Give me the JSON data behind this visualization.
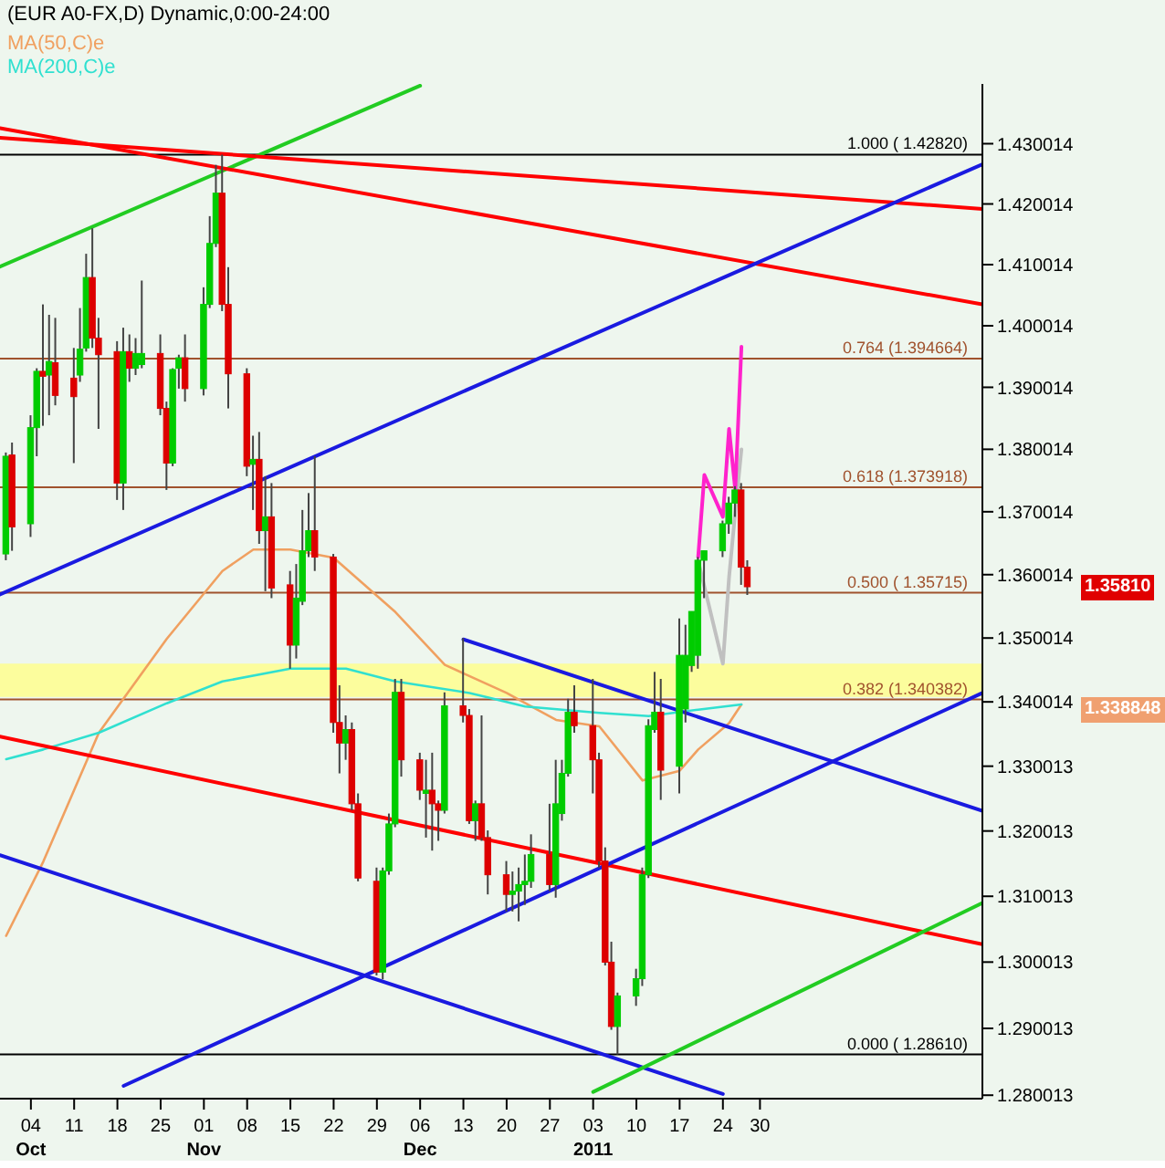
{
  "chart_data": {
    "type": "candlestick",
    "title": "(EUR A0-FX,D) Dynamic,0:00-24:00",
    "x": [
      "2010-09-30",
      "2010-10-01",
      "2010-10-04",
      "2010-10-05",
      "2010-10-06",
      "2010-10-07",
      "2010-10-08",
      "2010-10-11",
      "2010-10-12",
      "2010-10-13",
      "2010-10-14",
      "2010-10-15",
      "2010-10-18",
      "2010-10-19",
      "2010-10-20",
      "2010-10-21",
      "2010-10-22",
      "2010-10-25",
      "2010-10-26",
      "2010-10-27",
      "2010-10-28",
      "2010-10-29",
      "2010-11-01",
      "2010-11-02",
      "2010-11-03",
      "2010-11-04",
      "2010-11-05",
      "2010-11-08",
      "2010-11-09",
      "2010-11-10",
      "2010-11-11",
      "2010-11-12",
      "2010-11-15",
      "2010-11-16",
      "2010-11-17",
      "2010-11-18",
      "2010-11-19",
      "2010-11-22",
      "2010-11-23",
      "2010-11-24",
      "2010-11-25",
      "2010-11-26",
      "2010-11-29",
      "2010-11-30",
      "2010-12-01",
      "2010-12-02",
      "2010-12-03",
      "2010-12-06",
      "2010-12-07",
      "2010-12-08",
      "2010-12-09",
      "2010-12-10",
      "2010-12-13",
      "2010-12-14",
      "2010-12-15",
      "2010-12-16",
      "2010-12-17",
      "2010-12-20",
      "2010-12-21",
      "2010-12-22",
      "2010-12-23",
      "2010-12-24",
      "2010-12-27",
      "2010-12-28",
      "2010-12-29",
      "2010-12-30",
      "2010-12-31",
      "2011-01-03",
      "2011-01-04",
      "2011-01-05",
      "2011-01-06",
      "2011-01-07",
      "2011-01-10",
      "2011-01-11",
      "2011-01-12",
      "2011-01-13",
      "2011-01-14",
      "2011-01-17",
      "2011-01-18",
      "2011-01-19",
      "2011-01-20",
      "2011-01-21",
      "2011-01-24",
      "2011-01-25",
      "2011-01-26",
      "2011-01-27",
      "2011-01-28"
    ],
    "ohlc": [
      [
        1.3633,
        1.3795,
        1.3623,
        1.3789
      ],
      [
        1.3791,
        1.3811,
        1.3638,
        1.3676
      ],
      [
        1.3681,
        1.3855,
        1.366,
        1.3835
      ],
      [
        1.3835,
        1.3931,
        1.3789,
        1.3926
      ],
      [
        1.3926,
        1.4035,
        1.3838,
        1.3918
      ],
      [
        1.392,
        1.4018,
        1.3855,
        1.3942
      ],
      [
        1.394,
        1.4013,
        1.3871,
        1.3887
      ],
      [
        1.3915,
        1.3964,
        1.3778,
        1.3885
      ],
      [
        1.392,
        1.4029,
        1.3909,
        1.3962
      ],
      [
        1.3964,
        1.4118,
        1.3958,
        1.4079
      ],
      [
        1.4079,
        1.416,
        1.3964,
        1.398
      ],
      [
        1.398,
        1.4013,
        1.3833,
        1.3953
      ],
      [
        1.3958,
        1.3975,
        1.3719,
        1.3746
      ],
      [
        1.3746,
        1.3997,
        1.3703,
        1.3958
      ],
      [
        1.3958,
        1.3986,
        1.3909,
        1.3931
      ],
      [
        1.3931,
        1.398,
        1.392,
        1.3955
      ],
      [
        1.3937,
        1.4074,
        1.3931,
        1.3955
      ],
      [
        1.3955,
        1.3986,
        1.3855,
        1.3866
      ],
      [
        1.3866,
        1.3877,
        1.3735,
        1.3778
      ],
      [
        1.3778,
        1.3931,
        1.3773,
        1.3929
      ],
      [
        1.3931,
        1.3953,
        1.3898,
        1.3948
      ],
      [
        1.3948,
        1.3986,
        1.3877,
        1.3898
      ],
      [
        1.3898,
        1.4063,
        1.3887,
        1.4035
      ],
      [
        1.4035,
        1.418,
        1.4029,
        1.4135
      ],
      [
        1.4135,
        1.4265,
        1.4129,
        1.4218
      ],
      [
        1.4218,
        1.4282,
        1.4024,
        1.4035
      ],
      [
        1.4035,
        1.4096,
        1.3866,
        1.3922
      ],
      [
        1.3922,
        1.3931,
        1.3757,
        1.3773
      ],
      [
        1.3776,
        1.3822,
        1.3703,
        1.3784
      ],
      [
        1.3784,
        1.3828,
        1.3649,
        1.367
      ],
      [
        1.367,
        1.3757,
        1.3574,
        1.3692
      ],
      [
        1.3692,
        1.3746,
        1.3563,
        1.3579
      ],
      [
        1.3584,
        1.3606,
        1.3452,
        1.3489
      ],
      [
        1.3489,
        1.3617,
        1.3468,
        1.3563
      ],
      [
        1.3558,
        1.3703,
        1.3552,
        1.3638
      ],
      [
        1.3638,
        1.373,
        1.3628,
        1.367
      ],
      [
        1.367,
        1.3789,
        1.3606,
        1.3628
      ],
      [
        1.3628,
        1.3633,
        1.3352,
        1.3368
      ],
      [
        1.3368,
        1.3426,
        1.3289,
        1.3336
      ],
      [
        1.3336,
        1.3379,
        1.331,
        1.3357
      ],
      [
        1.3357,
        1.3368,
        1.3232,
        1.3242
      ],
      [
        1.3242,
        1.3258,
        1.3123,
        1.3128
      ],
      [
        1.3123,
        1.3144,
        1.298,
        1.2985
      ],
      [
        1.2985,
        1.3144,
        1.2974,
        1.3139
      ],
      [
        1.3139,
        1.3227,
        1.3133,
        1.3211
      ],
      [
        1.3211,
        1.3436,
        1.3206,
        1.3415
      ],
      [
        1.3415,
        1.3436,
        1.3284,
        1.331
      ],
      [
        1.331,
        1.3321,
        1.3248,
        1.3263
      ],
      [
        1.3258,
        1.331,
        1.319,
        1.3263
      ],
      [
        1.3263,
        1.3321,
        1.317,
        1.3242
      ],
      [
        1.3242,
        1.3247,
        1.3185,
        1.3232
      ],
      [
        1.3232,
        1.3415,
        1.3227,
        1.3394
      ],
      [
        1.3394,
        1.35,
        1.3368,
        1.3379
      ],
      [
        1.3379,
        1.3389,
        1.3211,
        1.3216
      ],
      [
        1.3216,
        1.3247,
        1.3185,
        1.3242
      ],
      [
        1.3242,
        1.3379,
        1.3185,
        1.319
      ],
      [
        1.319,
        1.3201,
        1.3103,
        1.3133
      ],
      [
        1.3133,
        1.3154,
        1.3077,
        1.3103
      ],
      [
        1.3103,
        1.3138,
        1.3077,
        1.3108
      ],
      [
        1.3108,
        1.3144,
        1.3062,
        1.3118
      ],
      [
        1.3118,
        1.3164,
        1.3087,
        1.3123
      ],
      [
        1.3123,
        1.3195,
        1.3113,
        1.3164
      ],
      [
        1.3164,
        1.3242,
        1.3108,
        1.3118
      ],
      [
        1.3118,
        1.331,
        1.3098,
        1.3242
      ],
      [
        1.3227,
        1.331,
        1.3216,
        1.3289
      ],
      [
        1.3289,
        1.3405,
        1.3284,
        1.3384
      ],
      [
        1.3384,
        1.3426,
        1.3352,
        1.3363
      ],
      [
        1.3363,
        1.3436,
        1.3258,
        1.331
      ],
      [
        1.331,
        1.3321,
        1.3144,
        1.3154
      ],
      [
        1.3154,
        1.3175,
        1.2995,
        1.3
      ],
      [
        1.3,
        1.3031,
        1.2898,
        1.2903
      ],
      [
        1.2903,
        1.2954,
        1.2861,
        1.2949
      ],
      [
        1.2949,
        1.299,
        1.2934,
        1.2975
      ],
      [
        1.2975,
        1.3144,
        1.2964,
        1.3133
      ],
      [
        1.3133,
        1.3373,
        1.3128,
        1.3363
      ],
      [
        1.3357,
        1.3447,
        1.3352,
        1.3384
      ],
      [
        1.3384,
        1.3436,
        1.3248,
        1.3294
      ],
      [
        1.33,
        1.3531,
        1.3258,
        1.3473
      ],
      [
        1.3389,
        1.3521,
        1.3368,
        1.3473
      ],
      [
        1.3457,
        1.3542,
        1.3447,
        1.3542
      ],
      [
        1.3473,
        1.3628,
        1.3452,
        1.3623
      ],
      [
        1.3623,
        1.3638,
        1.3563,
        1.3638
      ],
      [
        1.3638,
        1.3686,
        1.3628,
        1.3681
      ],
      [
        1.3681,
        1.3724,
        1.3665,
        1.3714
      ],
      [
        1.3714,
        1.3741,
        1.3692,
        1.3735
      ],
      [
        1.3735,
        1.3746,
        1.3584,
        1.3612
      ],
      [
        1.3612,
        1.3623,
        1.3568,
        1.3581
      ]
    ],
    "colors": [
      "#00cc00",
      "#dd0000",
      "#00cc00",
      "#00cc00",
      "#dd0000",
      "#00cc00",
      "#dd0000",
      "#dd0000",
      "#00cc00",
      "#00cc00",
      "#dd0000",
      "#dd0000",
      "#dd0000",
      "#00cc00",
      "#dd0000",
      "#00cc00",
      "#00cc00",
      "#dd0000",
      "#dd0000",
      "#00cc00",
      "#00cc00",
      "#dd0000",
      "#00cc00",
      "#00cc00",
      "#00cc00",
      "#dd0000",
      "#dd0000",
      "#dd0000",
      "#00cc00",
      "#dd0000",
      "#00cc00",
      "#dd0000",
      "#dd0000",
      "#00cc00",
      "#00cc00",
      "#00cc00",
      "#dd0000",
      "#dd0000",
      "#dd0000",
      "#00cc00",
      "#dd0000",
      "#dd0000",
      "#dd0000",
      "#00cc00",
      "#00cc00",
      "#00cc00",
      "#dd0000",
      "#dd0000",
      "#00cc00",
      "#dd0000",
      "#dd0000",
      "#00cc00",
      "#dd0000",
      "#dd0000",
      "#00cc00",
      "#dd0000",
      "#dd0000",
      "#dd0000",
      "#00cc00",
      "#00cc00",
      "#00cc00",
      "#00cc00",
      "#dd0000",
      "#00cc00",
      "#00cc00",
      "#00cc00",
      "#dd0000",
      "#dd0000",
      "#dd0000",
      "#dd0000",
      "#dd0000",
      "#00cc00",
      "#00cc00",
      "#00cc00",
      "#00cc00",
      "#00cc00",
      "#dd0000",
      "#00cc00",
      "#00cc00",
      "#00cc00",
      "#00cc00",
      "#00cc00",
      "#00cc00",
      "#00cc00",
      "#00cc00",
      "#dd0000",
      "#dd0000"
    ],
    "series": [
      {
        "type": "line",
        "name": "MA(50,C)e",
        "color": "#f0a060",
        "x": [
          "2010-09-30",
          "2010-10-06",
          "2010-10-15",
          "2010-10-26",
          "2010-11-04",
          "2010-11-09",
          "2010-11-15",
          "2010-11-22",
          "2010-12-02",
          "2010-12-10",
          "2010-12-20",
          "2010-12-28",
          "2011-01-04",
          "2011-01-11",
          "2011-01-17",
          "2011-01-20",
          "2011-01-25",
          "2011-01-27"
        ],
        "values": [
          1.304,
          1.3153,
          1.3352,
          1.3499,
          1.3606,
          1.364,
          1.364,
          1.3627,
          1.3541,
          1.3458,
          1.3414,
          1.3372,
          1.3362,
          1.3278,
          1.3293,
          1.3326,
          1.3367,
          1.3396
        ]
      },
      {
        "type": "line",
        "name": "MA(200,C)e",
        "color": "#30e0d0",
        "x": [
          "2010-09-30",
          "2010-10-06",
          "2010-10-15",
          "2010-10-26",
          "2010-11-04",
          "2010-11-15",
          "2010-11-24",
          "2010-12-02",
          "2010-12-14",
          "2010-12-23",
          "2011-01-04",
          "2011-01-12",
          "2011-01-20",
          "2011-01-27"
        ],
        "values": [
          1.3311,
          1.3326,
          1.3352,
          1.3398,
          1.3432,
          1.3452,
          1.3452,
          1.3432,
          1.3414,
          1.3393,
          1.3383,
          1.3378,
          1.3388,
          1.3396
        ]
      },
      {
        "type": "line",
        "color": "#22cc22",
        "x": [
          "2010-09-29",
          "2010-12-06"
        ],
        "values": [
          1.4097,
          1.4397
        ]
      },
      {
        "type": "line",
        "color": "#ff0000",
        "x": [
          "2010-09-29",
          "2011-03-07"
        ],
        "values": [
          1.4326,
          1.4035
        ]
      },
      {
        "type": "line",
        "color": "#ff0000",
        "x": [
          "2010-09-29",
          "2011-03-07"
        ],
        "values": [
          1.431,
          1.4192
        ]
      },
      {
        "type": "line",
        "color": "#ff0000",
        "x": [
          "2010-09-29",
          "2011-03-07"
        ],
        "values": [
          1.3346,
          1.3027
        ]
      },
      {
        "type": "line",
        "color": "#1a1ae0",
        "x": [
          "2010-09-29",
          "2011-03-07"
        ],
        "values": [
          1.3569,
          1.4266
        ]
      },
      {
        "type": "line",
        "color": "#1a1ae0",
        "x": [
          "2010-09-29",
          "2011-01-24"
        ],
        "values": [
          1.3163,
          1.2802
        ]
      },
      {
        "type": "line",
        "color": "#1a1ae0",
        "x": [
          "2010-10-19",
          "2011-03-07"
        ],
        "values": [
          1.2814,
          1.3414
        ]
      },
      {
        "type": "line",
        "color": "#1a1ae0",
        "x": [
          "2010-12-13",
          "2011-03-07"
        ],
        "values": [
          1.3498,
          1.3231
        ]
      },
      {
        "type": "line",
        "color": "#22cc22",
        "x": [
          "2011-01-03",
          "2011-03-07"
        ],
        "values": [
          1.2805,
          1.309
        ]
      },
      {
        "type": "line",
        "color": "#c0c0c0",
        "x": [
          "2011-01-20",
          "2011-01-24",
          "2011-01-25",
          "2011-01-26",
          "2011-01-27"
        ],
        "values": [
          1.3622,
          1.346,
          1.3596,
          1.37,
          1.38
        ]
      },
      {
        "type": "line",
        "color": "#ff22cc",
        "x": [
          "2011-01-20",
          "2011-01-21",
          "2011-01-24",
          "2011-01-25",
          "2011-01-26",
          "2011-01-27"
        ],
        "values": [
          1.3628,
          1.3759,
          1.3692,
          1.3833,
          1.3735,
          1.3966
        ]
      }
    ],
    "bands": [
      {
        "axis": "y",
        "from": 1.3408,
        "to": 1.346,
        "color": "#ffff88"
      }
    ],
    "ref_lines": [
      {
        "axis": "y",
        "value": 1.4282,
        "label": "1.000 ( 1.42820)",
        "color": "#000000"
      },
      {
        "axis": "y",
        "value": 1.394664,
        "label": "0.764 (1.394664)",
        "color": "#a0522d"
      },
      {
        "axis": "y",
        "value": 1.373918,
        "label": "0.618 (1.373918)",
        "color": "#a0522d"
      },
      {
        "axis": "y",
        "value": 1.35715,
        "label": "0.500 ( 1.35715)",
        "color": "#a0522d"
      },
      {
        "axis": "y",
        "value": 1.340382,
        "label": "0.382 (1.340382)",
        "color": "#a0522d"
      },
      {
        "axis": "y",
        "value": 1.2861,
        "label": "0.000 ( 1.28610)",
        "color": "#000000"
      }
    ],
    "annotations": [
      "1.35810",
      "1.338848"
    ],
    "log": "y",
    "ylim": [
      1.2795,
      1.44
    ],
    "yticks": [
      1.280013,
      1.290013,
      1.300013,
      1.310013,
      1.320013,
      1.330013,
      1.340014,
      1.350014,
      1.360014,
      1.370014,
      1.380014,
      1.390014,
      1.400014,
      1.410014,
      1.420014,
      1.430014
    ],
    "xlim": [
      "2010-09-29",
      "2011-03-07"
    ],
    "xticks": [
      {
        "value": "2010-10-04",
        "label": "04\nOct"
      },
      {
        "value": "2010-10-11",
        "label": "11"
      },
      {
        "value": "2010-10-18",
        "label": "18"
      },
      {
        "value": "2010-10-25",
        "label": "25"
      },
      {
        "value": "2010-11-01",
        "label": "01\nNov"
      },
      {
        "value": "2010-11-08",
        "label": "08"
      },
      {
        "value": "2010-11-15",
        "label": "15"
      },
      {
        "value": "2010-11-22",
        "label": "22"
      },
      {
        "value": "2010-11-29",
        "label": "29"
      },
      {
        "value": "2010-12-06",
        "label": "06\nDec"
      },
      {
        "value": "2010-12-13",
        "label": "13"
      },
      {
        "value": "2010-12-20",
        "label": "20"
      },
      {
        "value": "2010-12-27",
        "label": "27"
      },
      {
        "value": "2011-01-03",
        "label": "03\n2011"
      },
      {
        "value": "2011-01-10",
        "label": "10"
      },
      {
        "value": "2011-01-17",
        "label": "17"
      },
      {
        "value": "2011-01-24",
        "label": "24"
      },
      {
        "value": "2011-01-30",
        "label": "30"
      }
    ],
    "legend": "top left",
    "marker": "none"
  }
}
